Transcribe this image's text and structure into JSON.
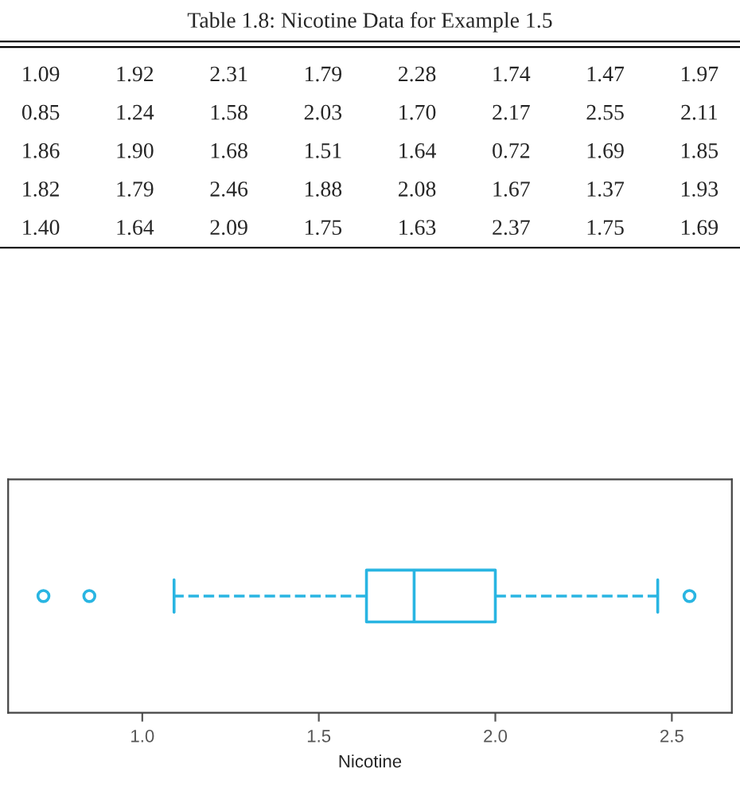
{
  "chart_data": {
    "type": "box",
    "orientation": "horizontal",
    "categories": [
      null
    ],
    "color": "#29b5e2",
    "boxes": [
      {
        "low": 1.09,
        "q1": 1.635,
        "median": 1.77,
        "q3": 2.0,
        "high": 2.46,
        "outliers": [
          0.72,
          0.85,
          2.55
        ]
      }
    ],
    "xlabel": "Nicotine",
    "xlim": [
      0.62,
      2.67
    ],
    "xticks": [
      {
        "value": 1.0,
        "label": "1.0"
      },
      {
        "value": 1.5,
        "label": "1.5"
      },
      {
        "value": 2.0,
        "label": "2.0"
      },
      {
        "value": 2.5,
        "label": "2.5"
      }
    ],
    "tick_labels": "x",
    "grid": false,
    "line_style": "dashed",
    "annotations": [
      "Table 1.8: Nicotine Data for Example 1.5",
      "1.09 1.92 2.31 1.79 2.28 1.74 1.47 1.97",
      "0.85 1.24 1.58 2.03 1.70 2.17 2.55 2.11",
      "1.86 1.90 1.68 1.51 1.64 0.72 1.69 1.85",
      "1.82 1.79 2.46 1.88 2.08 1.67 1.37 1.93",
      "1.40 1.64 2.09 1.75 1.63 2.37 1.75 1.69"
    ]
  }
}
